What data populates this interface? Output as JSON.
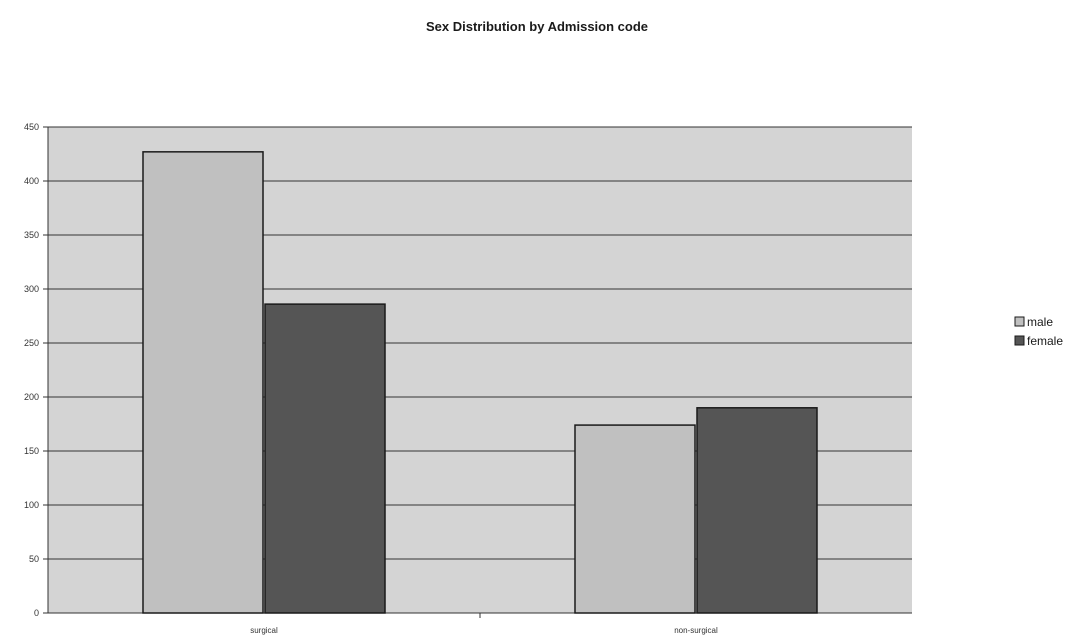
{
  "chart_data": {
    "type": "bar",
    "title": "Sex Distribution by Admission code",
    "xlabel": "",
    "ylabel": "",
    "categories": [
      "surgical",
      "non-surgical"
    ],
    "series": [
      {
        "name": "male",
        "values": [
          427,
          174
        ],
        "color": "#c0c0c0"
      },
      {
        "name": "female",
        "values": [
          286,
          190
        ],
        "color": "#555555"
      }
    ],
    "ylim": [
      0,
      450
    ],
    "yticks": [
      0,
      50,
      100,
      150,
      200,
      250,
      300,
      350,
      400,
      450
    ],
    "grid": true,
    "legend_position": "right",
    "plot_background": "#d4d4d4"
  }
}
